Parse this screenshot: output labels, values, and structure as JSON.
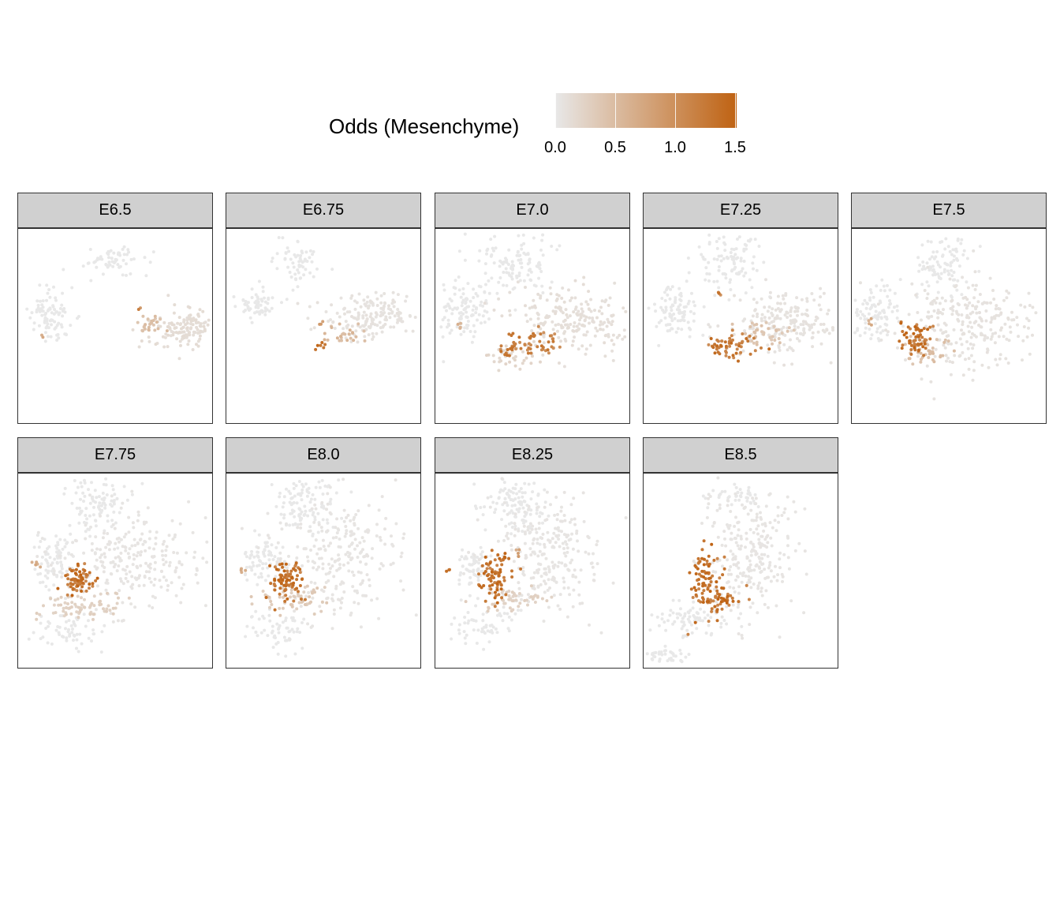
{
  "legend": {
    "title": "Odds (Mesenchyme)",
    "ticks": [
      "0.0",
      "0.5",
      "1.0",
      "1.5"
    ],
    "tick_values": [
      0,
      0.5,
      1.0,
      1.5
    ],
    "range": [
      0,
      1.5
    ],
    "low_color": "#e8e8e8",
    "high_color": "#bf6212"
  },
  "chart_data": {
    "type": "scatter",
    "facet_by": "stage",
    "color_scale": "Odds (Mesenchyme)",
    "panels": [
      {
        "label": "E6.5"
      },
      {
        "label": "E6.75"
      },
      {
        "label": "E7.0"
      },
      {
        "label": "E7.25"
      },
      {
        "label": "E7.5"
      },
      {
        "label": "E7.75"
      },
      {
        "label": "E8.0"
      },
      {
        "label": "E8.25"
      },
      {
        "label": "E8.5"
      }
    ]
  }
}
